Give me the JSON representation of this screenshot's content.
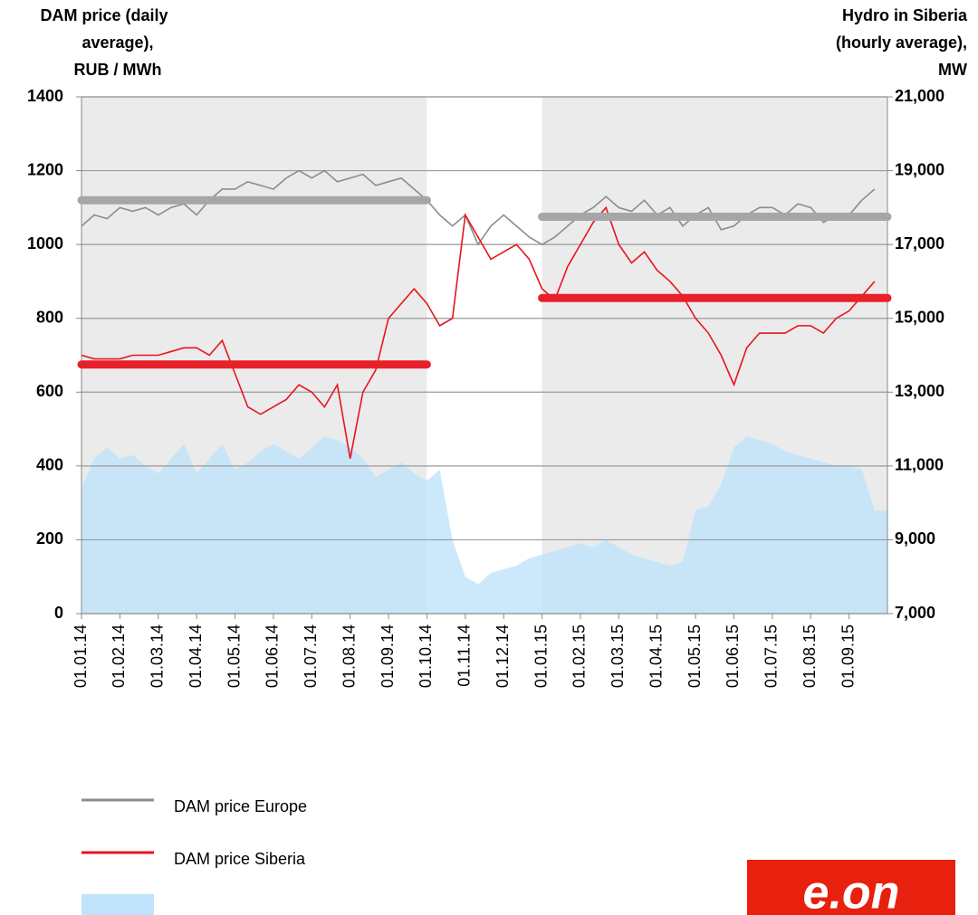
{
  "chart_data": {
    "type": "line",
    "y_label": [
      "DAM price (daily",
      "average),",
      "RUB / MWh"
    ],
    "y2_label": [
      "Hydro in Siberia",
      "(hourly average),",
      "MW"
    ],
    "categories": [
      "01.01.14",
      null,
      null,
      "01.02.14",
      null,
      null,
      "01.03.14",
      null,
      null,
      "01.04.14",
      null,
      null,
      "01.05.14",
      null,
      null,
      "01.06.14",
      null,
      null,
      "01.07.14",
      null,
      null,
      "01.08.14",
      null,
      null,
      "01.09.14",
      null,
      null,
      "01.10.14",
      null,
      null,
      "01.11.14",
      null,
      null,
      "01.12.14",
      null,
      null,
      "01.01.15",
      null,
      null,
      "01.02.15",
      null,
      null,
      "01.03.15",
      null,
      null,
      "01.04.15",
      null,
      null,
      "01.05.15",
      null,
      null,
      "01.06.15",
      null,
      null,
      "01.07.15",
      null,
      null,
      "01.08.15",
      null,
      null,
      "01.09.15",
      null,
      null
    ],
    "series": [
      {
        "name": "DAM price Europe",
        "color": "#8c8c8c",
        "axis": "y",
        "values": [
          1050,
          1080,
          1070,
          1100,
          1090,
          1100,
          1080,
          1100,
          1110,
          1080,
          1120,
          1150,
          1150,
          1170,
          1160,
          1150,
          1180,
          1200,
          1180,
          1200,
          1170,
          1180,
          1190,
          1160,
          1170,
          1180,
          1150,
          1120,
          1080,
          1050,
          1080,
          1000,
          1050,
          1080,
          1050,
          1020,
          1000,
          1020,
          1050,
          1080,
          1100,
          1130,
          1100,
          1090,
          1120,
          1080,
          1100,
          1050,
          1080,
          1100,
          1040,
          1050,
          1080,
          1100,
          1100,
          1080,
          1110,
          1100,
          1060,
          1080,
          1080,
          1120,
          1150
        ]
      },
      {
        "name": "DAM price Siberia",
        "color": "#e8141e",
        "axis": "y",
        "values": [
          700,
          690,
          690,
          690,
          700,
          700,
          700,
          710,
          720,
          720,
          700,
          740,
          650,
          560,
          540,
          560,
          580,
          620,
          600,
          560,
          620,
          420,
          600,
          660,
          800,
          840,
          880,
          840,
          780,
          800,
          1080,
          1020,
          960,
          980,
          1000,
          960,
          880,
          850,
          940,
          1000,
          1060,
          1100,
          1000,
          950,
          980,
          930,
          900,
          860,
          800,
          760,
          700,
          620,
          720,
          760,
          760,
          760,
          780,
          780,
          760,
          800,
          820,
          860,
          900
        ]
      },
      {
        "name": "Hydro in Siberia",
        "color": "#bfe4fb",
        "axis": "y2",
        "kind": "area",
        "values": [
          10400,
          11200,
          11500,
          11200,
          11300,
          11000,
          10800,
          11200,
          11600,
          10800,
          11200,
          11600,
          10900,
          11100,
          11400,
          11600,
          11400,
          11200,
          11500,
          11800,
          11700,
          11500,
          11200,
          10700,
          10900,
          11100,
          10800,
          10600,
          10900,
          9000,
          8000,
          7800,
          8100,
          8200,
          8300,
          8500,
          8600,
          8700,
          8800,
          8900,
          8800,
          9000,
          8800,
          8600,
          8500,
          8400,
          8300,
          8400,
          9800,
          9900,
          10500,
          11500,
          11800,
          11700,
          11600,
          11400,
          11300,
          11200,
          11100,
          11000,
          11000,
          10900,
          9800
        ]
      }
    ],
    "periods": [
      {
        "from": "01.01.14",
        "to": "01.10.14",
        "averages": [
          1120,
          675
        ]
      },
      {
        "from": "01.01.15",
        "to": null,
        "averages": [
          1075,
          855
        ]
      }
    ],
    "ylim": [
      0,
      1400
    ],
    "yticks": [
      0,
      200,
      400,
      600,
      800,
      1000,
      1200,
      1400
    ],
    "y2lim": [
      7000,
      21000
    ],
    "y2ticks": [
      {
        "value": 7000,
        "label": "7,000"
      },
      {
        "value": 9000,
        "label": "9,000"
      },
      {
        "value": 11000,
        "label": "11,000"
      },
      {
        "value": 13000,
        "label": "13,000"
      },
      {
        "value": 15000,
        "label": "15,000"
      },
      {
        "value": 17000,
        "label": "17,000"
      },
      {
        "value": 19000,
        "label": "19,000"
      },
      {
        "value": 21000,
        "label": "21,000"
      }
    ],
    "grid": true,
    "legend": "bottom-left",
    "logo": "e.on"
  }
}
